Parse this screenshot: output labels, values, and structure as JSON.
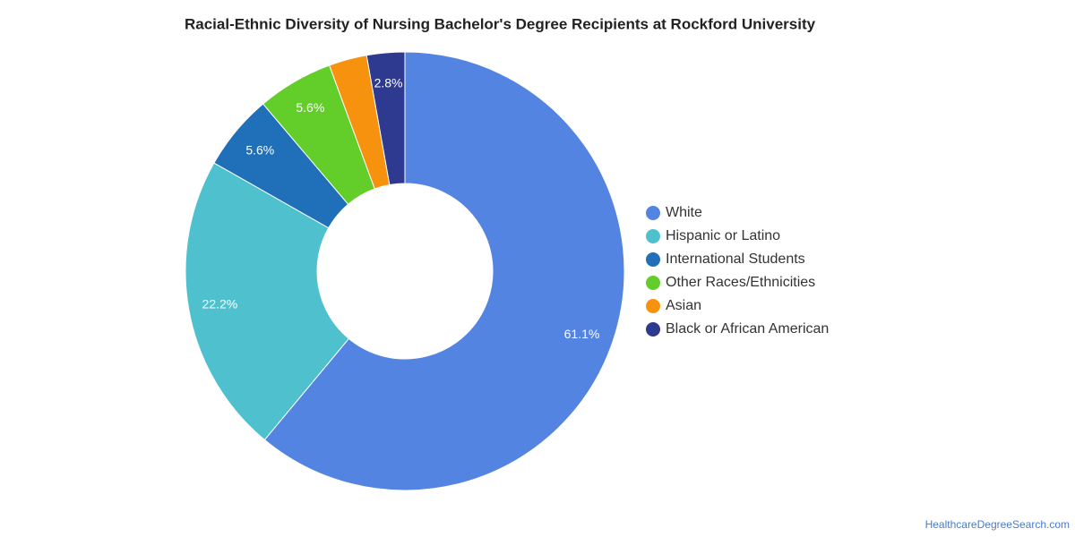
{
  "chart_data": {
    "type": "donut",
    "title": "Racial-Ethnic Diversity of Nursing Bachelor's Degree Recipients at Rockford University",
    "categories": [
      "White",
      "Hispanic or Latino",
      "International Students",
      "Other Races/Ethnicities",
      "Asian",
      "Black or African American"
    ],
    "values": [
      61.1,
      22.2,
      5.6,
      5.6,
      2.8,
      2.8
    ],
    "value_labels": [
      "61.1%",
      "22.2%",
      "5.6%",
      "5.6%",
      null,
      "2.8%"
    ],
    "colors": [
      "#5484e2",
      "#4fc1ce",
      "#1f70b9",
      "#63cd2a",
      "#f7920e",
      "#2e3990"
    ],
    "legend": "right",
    "source": "HealthcareDegreeSearch.com"
  }
}
